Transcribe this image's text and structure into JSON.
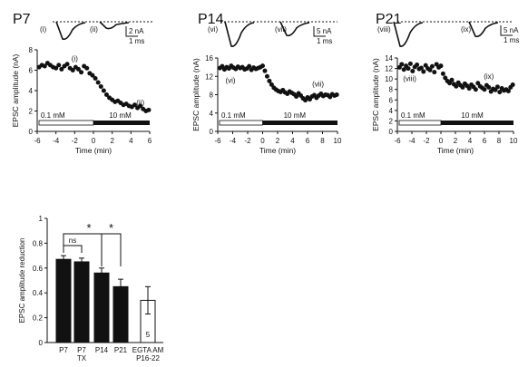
{
  "figure": {
    "panels": [
      {
        "label": "P7",
        "scale_amp": "2 nA",
        "scale_time": "1 ms",
        "trace_labels": [
          "(i)",
          "(ii)"
        ]
      },
      {
        "label": "P14",
        "scale_amp": "5 nA",
        "scale_time": "1 ms",
        "trace_labels": [
          "(vi)",
          "(vii)"
        ]
      },
      {
        "label": "P21",
        "scale_amp": "5 nA",
        "scale_time": "1 ms",
        "trace_labels": [
          "(viii)",
          "(ix)"
        ]
      }
    ],
    "conc_low": "0.1 mM",
    "conc_high": "10 mM",
    "ylabel_time": "EPSC amplitude (nA)",
    "xlabel_time": "Time (min)",
    "ylabel_bar": "EPSC amplitude reduction",
    "ns_label": "ns",
    "star": "*",
    "n_label": "5"
  },
  "chart_data": [
    {
      "type": "scatter",
      "panel": "P7",
      "xlabel": "Time (min)",
      "ylabel": "EPSC amplitude (nA)",
      "xlim": [
        -6,
        6
      ],
      "ylim": [
        0,
        8
      ],
      "xticks": [
        -6,
        -4,
        -2,
        0,
        2,
        4,
        6
      ],
      "yticks": [
        0,
        2,
        4,
        6,
        8
      ],
      "annotations": [
        {
          "text": "(i)",
          "x": -2.0,
          "y": 6.9
        },
        {
          "text": "(ii)",
          "x": 5.0,
          "y": 2.6
        }
      ],
      "x": [
        -5.8,
        -5.5,
        -5.2,
        -4.9,
        -4.6,
        -4.3,
        -4.0,
        -3.7,
        -3.4,
        -3.1,
        -2.8,
        -2.5,
        -2.2,
        -1.9,
        -1.6,
        -1.3,
        -1.0,
        -0.7,
        -0.4,
        -0.1,
        0.2,
        0.5,
        0.8,
        1.1,
        1.4,
        1.7,
        2.0,
        2.3,
        2.6,
        2.9,
        3.2,
        3.5,
        3.8,
        4.1,
        4.4,
        4.7,
        5.0,
        5.3,
        5.6,
        5.9
      ],
      "y": [
        6.3,
        6.5,
        6.4,
        6.7,
        6.5,
        6.3,
        6.2,
        6.5,
        6.1,
        6.4,
        6.6,
        6.2,
        6.0,
        6.3,
        6.1,
        5.8,
        6.4,
        6.2,
        5.7,
        5.5,
        5.2,
        4.8,
        4.4,
        4.0,
        3.6,
        3.3,
        3.1,
        2.9,
        3.0,
        2.8,
        2.6,
        2.7,
        2.5,
        2.4,
        2.6,
        2.3,
        2.5,
        2.2,
        2.0,
        2.1
      ]
    },
    {
      "type": "scatter",
      "panel": "P14",
      "xlabel": "Time (min)",
      "ylabel": "EPSC amplitude (nA)",
      "xlim": [
        -6,
        10
      ],
      "ylim": [
        0,
        16
      ],
      "xticks": [
        -6,
        -4,
        -2,
        0,
        2,
        4,
        6,
        8,
        10
      ],
      "yticks": [
        0,
        4,
        8,
        12,
        16
      ],
      "annotations": [
        {
          "text": "(vi)",
          "x": -4.3,
          "y": 10.6
        },
        {
          "text": "(vii)",
          "x": 7.4,
          "y": 9.8
        }
      ],
      "x": [
        -5.7,
        -5.4,
        -5.1,
        -4.8,
        -4.5,
        -4.2,
        -3.9,
        -3.6,
        -3.3,
        -3.0,
        -2.7,
        -2.4,
        -2.1,
        -1.8,
        -1.5,
        -1.2,
        -0.9,
        -0.6,
        -0.3,
        0.0,
        0.3,
        0.6,
        0.9,
        1.2,
        1.5,
        1.8,
        2.1,
        2.4,
        2.7,
        3.0,
        3.3,
        3.6,
        3.9,
        4.2,
        4.5,
        4.8,
        5.1,
        5.4,
        5.7,
        6.0,
        6.3,
        6.6,
        6.9,
        7.2,
        7.5,
        7.8,
        8.1,
        8.4,
        8.7,
        9.0,
        9.3,
        9.6,
        9.9
      ],
      "y": [
        13.8,
        14.2,
        13.5,
        14.0,
        13.7,
        14.3,
        13.9,
        13.6,
        14.1,
        13.8,
        14.0,
        13.5,
        13.7,
        14.2,
        13.4,
        13.9,
        13.6,
        13.8,
        14.0,
        14.3,
        13.2,
        12.0,
        11.0,
        10.2,
        9.5,
        9.1,
        8.8,
        8.6,
        9.0,
        8.5,
        8.2,
        8.7,
        8.4,
        8.1,
        7.6,
        8.3,
        7.8,
        7.2,
        6.8,
        7.4,
        7.0,
        7.6,
        7.9,
        7.3,
        7.8,
        8.2,
        7.7,
        8.0,
        7.9,
        7.5,
        8.1,
        7.8,
        8.0
      ]
    },
    {
      "type": "scatter",
      "panel": "P21",
      "xlabel": "Time (min)",
      "ylabel": "EPSC amplitude (nA)",
      "xlim": [
        -6,
        10
      ],
      "ylim": [
        0,
        14
      ],
      "xticks": [
        -6,
        -4,
        -2,
        0,
        2,
        4,
        6,
        8,
        10
      ],
      "yticks": [
        0,
        2,
        4,
        6,
        8,
        10,
        12,
        14
      ],
      "annotations": [
        {
          "text": "(viii)",
          "x": -4.3,
          "y": 9.6
        },
        {
          "text": "(ix)",
          "x": 6.6,
          "y": 10.0
        }
      ],
      "x": [
        -5.7,
        -5.4,
        -5.1,
        -4.8,
        -4.5,
        -4.2,
        -3.9,
        -3.6,
        -3.3,
        -3.0,
        -2.7,
        -2.4,
        -2.1,
        -1.8,
        -1.5,
        -1.2,
        -0.9,
        -0.6,
        -0.3,
        0.0,
        0.3,
        0.6,
        0.9,
        1.2,
        1.5,
        1.8,
        2.1,
        2.4,
        2.7,
        3.0,
        3.3,
        3.6,
        3.9,
        4.2,
        4.5,
        4.8,
        5.1,
        5.4,
        5.7,
        6.0,
        6.3,
        6.6,
        6.9,
        7.2,
        7.5,
        7.8,
        8.1,
        8.4,
        8.7,
        9.0,
        9.3,
        9.6,
        9.9
      ],
      "y": [
        12.2,
        12.8,
        11.8,
        12.5,
        12.0,
        12.9,
        11.5,
        12.3,
        12.7,
        11.9,
        12.1,
        11.4,
        12.6,
        12.0,
        11.7,
        12.4,
        11.3,
        12.8,
        12.2,
        12.5,
        11.0,
        10.2,
        9.6,
        9.2,
        9.8,
        9.0,
        8.6,
        9.3,
        8.8,
        8.4,
        9.1,
        8.7,
        8.2,
        8.9,
        8.5,
        8.0,
        9.2,
        8.6,
        8.3,
        8.0,
        8.8,
        8.4,
        7.6,
        8.1,
        7.9,
        8.5,
        7.5,
        8.2,
        7.8,
        8.0,
        7.7,
        8.4,
        8.9
      ]
    },
    {
      "type": "bar",
      "ylabel": "EPSC amplitude reduction",
      "ylim": [
        0,
        1.0
      ],
      "yticks": [
        0,
        0.2,
        0.4,
        0.6,
        0.8,
        1.0
      ],
      "categories": [
        "P7",
        "P7 TX",
        "P14",
        "P21",
        "EGTA AM P16-22"
      ],
      "values": [
        0.67,
        0.65,
        0.56,
        0.45,
        0.34
      ],
      "errors": [
        0.03,
        0.03,
        0.04,
        0.06,
        0.11
      ],
      "fills": [
        "#111111",
        "#111111",
        "#111111",
        "#111111",
        "#ffffff"
      ],
      "significance": [
        {
          "between": [
            0,
            1
          ],
          "label": "ns"
        },
        {
          "between": [
            0,
            2
          ],
          "label": "*"
        },
        {
          "between": [
            2,
            3
          ],
          "label": "*"
        }
      ],
      "bar_annotation": {
        "category": "EGTA AM P16-22",
        "text": "5"
      }
    }
  ]
}
